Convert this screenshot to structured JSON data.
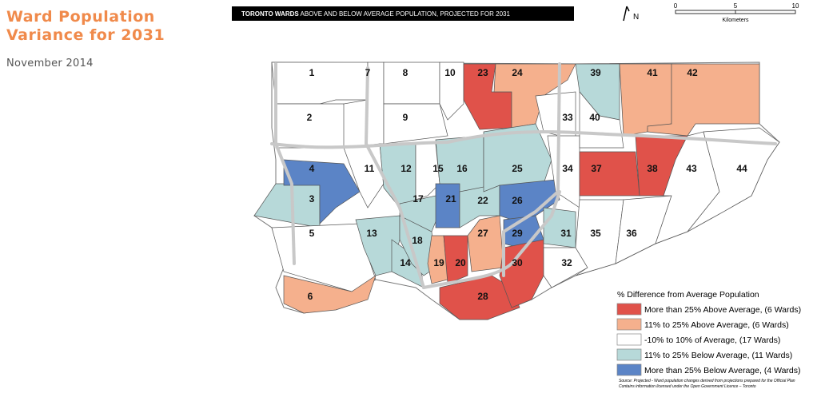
{
  "header": {
    "title": "Ward Population Variance for 2031",
    "date": "November 2014"
  },
  "map": {
    "banner": {
      "bold": "TORONTO WARDS",
      "rest": "ABOVE AND BELOW AVERAGE POPULATION,  PROJECTED FOR 2031"
    },
    "north": "N",
    "scale": {
      "ticks": [
        "0",
        "5",
        "10"
      ],
      "unit": "Kilometers"
    },
    "legend": {
      "title": "% Difference from Average Population",
      "items": [
        {
          "label": "More than 25% Above Average,  (6 Wards)",
          "color": "#e0524a"
        },
        {
          "label": "11% to 25% Above Average,  (6 Wards)",
          "color": "#f5b08d"
        },
        {
          "label": "-10% to 10% of Average,  (17 Wards)",
          "color": "#ffffff"
        },
        {
          "label": "11% to 25% Below Average,  (11 Wards)",
          "color": "#b7d9d9"
        },
        {
          "label": "More than 25% Below Average,  (4 Wards)",
          "color": "#5b84c6"
        }
      ]
    },
    "wards": [
      {
        "label": "1",
        "category": 2
      },
      {
        "label": "2",
        "category": 2
      },
      {
        "label": "3",
        "category": 3
      },
      {
        "label": "4",
        "category": 4
      },
      {
        "label": "5",
        "category": 2
      },
      {
        "label": "6",
        "category": 1
      },
      {
        "label": "7",
        "category": 2
      },
      {
        "label": "8",
        "category": 2
      },
      {
        "label": "9",
        "category": 2
      },
      {
        "label": "10",
        "category": 2
      },
      {
        "label": "11",
        "category": 2
      },
      {
        "label": "12",
        "category": 3
      },
      {
        "label": "13",
        "category": 3
      },
      {
        "label": "14",
        "category": 3
      },
      {
        "label": "15",
        "category": 2
      },
      {
        "label": "16",
        "category": 3
      },
      {
        "label": "17",
        "category": 3
      },
      {
        "label": "18",
        "category": 3
      },
      {
        "label": "19",
        "category": 1
      },
      {
        "label": "20",
        "category": 0
      },
      {
        "label": "21",
        "category": 4
      },
      {
        "label": "22",
        "category": 3
      },
      {
        "label": "23",
        "category": 0
      },
      {
        "label": "24",
        "category": 1
      },
      {
        "label": "25",
        "category": 3
      },
      {
        "label": "26",
        "category": 4
      },
      {
        "label": "27",
        "category": 1
      },
      {
        "label": "28",
        "category": 0
      },
      {
        "label": "29",
        "category": 4
      },
      {
        "label": "30",
        "category": 0
      },
      {
        "label": "31",
        "category": 3
      },
      {
        "label": "32",
        "category": 2
      },
      {
        "label": "33",
        "category": 2
      },
      {
        "label": "34",
        "category": 2
      },
      {
        "label": "35",
        "category": 2
      },
      {
        "label": "36",
        "category": 2
      },
      {
        "label": "37",
        "category": 0
      },
      {
        "label": "38",
        "category": 0
      },
      {
        "label": "39",
        "category": 3
      },
      {
        "label": "40",
        "category": 2
      },
      {
        "label": "41",
        "category": 1
      },
      {
        "label": "42",
        "category": 1
      },
      {
        "label": "43",
        "category": 2
      },
      {
        "label": "44",
        "category": 2
      }
    ],
    "source": [
      "Source: Projected - Ward population changes derived from projections prepared for the Official Plan",
      "Contains information licensed under the Open Government Licence – Toronto"
    ]
  }
}
